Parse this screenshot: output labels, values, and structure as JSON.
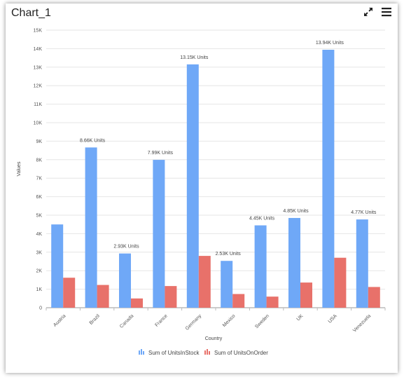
{
  "header": {
    "title": "Chart_1",
    "expand_icon": "expand-icon",
    "menu_icon": "hamburger-menu-icon"
  },
  "chart_data": {
    "type": "bar",
    "categories": [
      "Austria",
      "Brazil",
      "Canada",
      "France",
      "Germany",
      "Mexico",
      "Sweden",
      "UK",
      "USA",
      "Venezuela"
    ],
    "series": [
      {
        "name": "Sum of UnitsInStock",
        "color": "#6fa8f7",
        "values": [
          4500,
          8660,
          2930,
          7990,
          13150,
          2530,
          4450,
          4850,
          13940,
          4770
        ]
      },
      {
        "name": "Sum of UnitsOnOrder",
        "color": "#e8716a",
        "values": [
          1620,
          1230,
          500,
          1170,
          2800,
          740,
          600,
          1360,
          2700,
          1120
        ]
      }
    ],
    "data_labels": [
      "",
      "8.66K Units",
      "2.93K Units",
      "7.99K Units",
      "13.15K Units",
      "2.53K Units",
      "4.45K Units",
      "4.85K Units",
      "13.94K Units",
      "4.77K Units"
    ],
    "yticks": [
      "0",
      "1K",
      "2K",
      "3K",
      "4K",
      "5K",
      "6K",
      "7K",
      "8K",
      "9K",
      "10K",
      "11K",
      "12K",
      "13K",
      "14K",
      "15K"
    ],
    "ylim": [
      0,
      15000
    ],
    "xlabel": "Country",
    "ylabel": "Values",
    "legend_position": "bottom",
    "grid": true
  }
}
